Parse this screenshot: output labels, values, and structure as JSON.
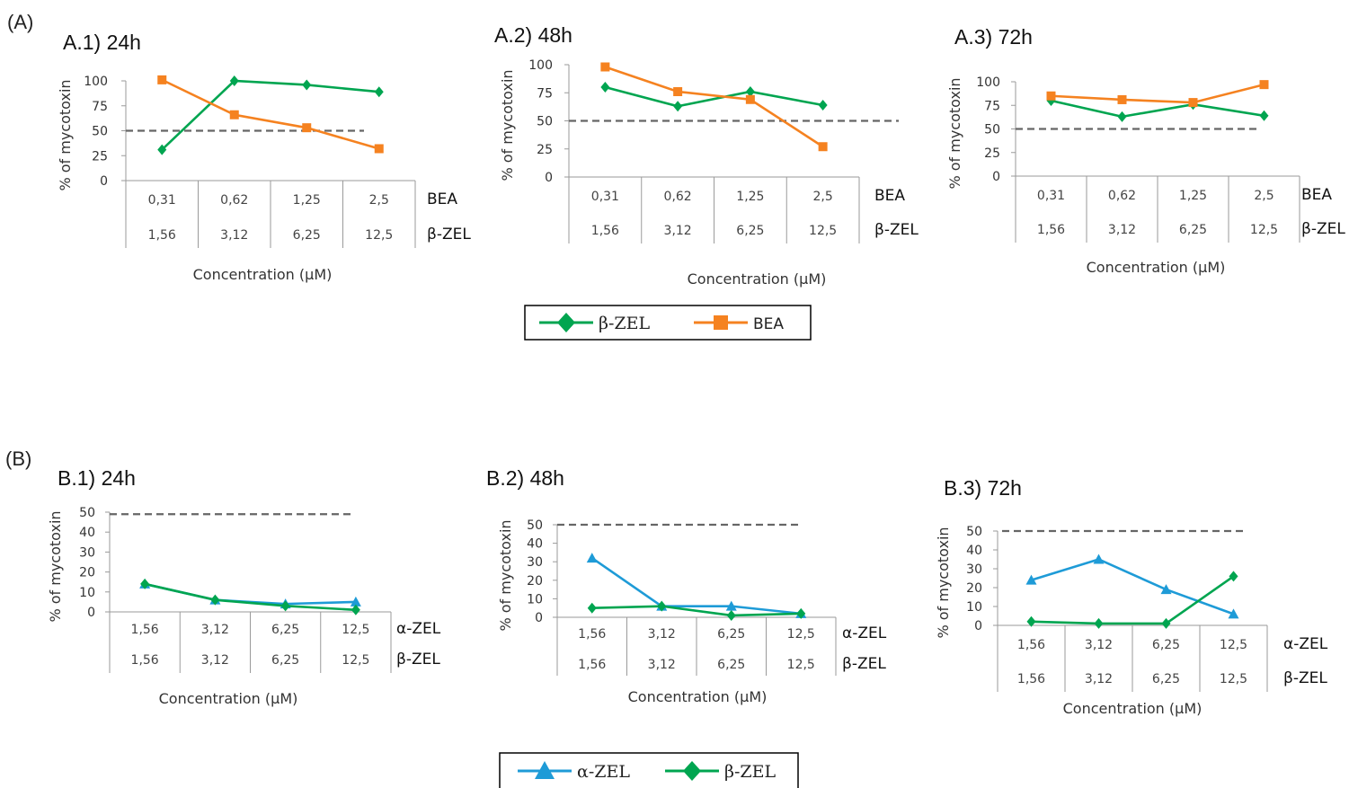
{
  "figure": {
    "section_a_label": "(A)",
    "section_b_label": "(B)"
  },
  "colors": {
    "beta_zel": "#00A550",
    "bea": "#F58220",
    "alpha_zel": "#1E9BD7",
    "reference": "#666666",
    "axis": "#9a9a9a"
  },
  "legend_a": [
    {
      "name": "β-ZEL",
      "color": "#00A550",
      "marker": "diamond"
    },
    {
      "name": "BEA",
      "color": "#F58220",
      "marker": "square"
    }
  ],
  "legend_b": [
    {
      "name": "α-ZEL",
      "color": "#1E9BD7",
      "marker": "triangle"
    },
    {
      "name": "β-ZEL",
      "color": "#00A550",
      "marker": "diamond"
    }
  ],
  "chart_data": [
    {
      "type": "line",
      "title": "A.1) 24h",
      "ylabel": "% of mycotoxin",
      "xlabel": "Concentration (μM)",
      "ylim": [
        0,
        100
      ],
      "yticks": [
        0,
        25,
        50,
        75,
        100
      ],
      "reference_line": 50,
      "category_rows": [
        {
          "name": "BEA",
          "labels": [
            "0,31",
            "0,62",
            "1,25",
            "2,5"
          ]
        },
        {
          "name": "β-ZEL",
          "labels": [
            "1,56",
            "3,12",
            "6,25",
            "12,5"
          ]
        }
      ],
      "series": [
        {
          "name": "β-ZEL",
          "marker": "diamond",
          "color": "#00A550",
          "values": [
            31,
            100,
            96,
            89
          ]
        },
        {
          "name": "BEA",
          "marker": "square",
          "color": "#F58220",
          "values": [
            101,
            66,
            53,
            32
          ]
        }
      ]
    },
    {
      "type": "line",
      "title": "A.2) 48h",
      "ylabel": "% of mycotoxin",
      "xlabel": "Concentration (μM)",
      "ylim": [
        0,
        100
      ],
      "yticks": [
        0,
        25,
        50,
        75,
        100
      ],
      "reference_line": 50,
      "category_rows": [
        {
          "name": "BEA",
          "labels": [
            "0,31",
            "0,62",
            "1,25",
            "2,5"
          ]
        },
        {
          "name": "β-ZEL",
          "labels": [
            "1,56",
            "3,12",
            "6,25",
            "12,5"
          ]
        }
      ],
      "series": [
        {
          "name": "β-ZEL",
          "marker": "diamond",
          "color": "#00A550",
          "values": [
            80,
            63,
            76,
            64
          ]
        },
        {
          "name": "BEA",
          "marker": "square",
          "color": "#F58220",
          "values": [
            98,
            76,
            69,
            27
          ]
        }
      ]
    },
    {
      "type": "line",
      "title": "A.3) 72h",
      "ylabel": "% of mycotoxin",
      "xlabel": "Concentration (μM)",
      "ylim": [
        0,
        100
      ],
      "yticks": [
        0,
        25,
        50,
        75,
        100
      ],
      "reference_line": 50,
      "category_rows": [
        {
          "name": "BEA",
          "labels": [
            "0,31",
            "0,62",
            "1,25",
            "2,5"
          ]
        },
        {
          "name": "β-ZEL",
          "labels": [
            "1,56",
            "3,12",
            "6,25",
            "12,5"
          ]
        }
      ],
      "series": [
        {
          "name": "β-ZEL",
          "marker": "diamond",
          "color": "#00A550",
          "values": [
            80,
            63,
            76,
            64
          ]
        },
        {
          "name": "BEA",
          "marker": "square",
          "color": "#F58220",
          "values": [
            85,
            81,
            78,
            97
          ]
        }
      ]
    },
    {
      "type": "line",
      "title": "B.1) 24h",
      "ylabel": "% of mycotoxin",
      "xlabel": "Concentration (μM)",
      "ylim": [
        0,
        50
      ],
      "yticks": [
        0,
        10,
        20,
        30,
        40,
        50
      ],
      "reference_line": 49,
      "category_rows": [
        {
          "name": "α-ZEL",
          "labels": [
            "1,56",
            "3,12",
            "6,25",
            "12,5"
          ]
        },
        {
          "name": "β-ZEL",
          "labels": [
            "1,56",
            "3,12",
            "6,25",
            "12,5"
          ]
        }
      ],
      "series": [
        {
          "name": "α-ZEL",
          "marker": "triangle",
          "color": "#1E9BD7",
          "values": [
            14,
            6,
            4,
            5
          ]
        },
        {
          "name": "β-ZEL",
          "marker": "diamond",
          "color": "#00A550",
          "values": [
            14,
            6,
            3,
            1
          ]
        }
      ]
    },
    {
      "type": "line",
      "title": "B.2) 48h",
      "ylabel": "% of mycotoxin",
      "xlabel": "Concentration (μM)",
      "ylim": [
        0,
        50
      ],
      "yticks": [
        0,
        10,
        20,
        30,
        40,
        50
      ],
      "reference_line": 50,
      "category_rows": [
        {
          "name": "α-ZEL",
          "labels": [
            "1,56",
            "3,12",
            "6,25",
            "12,5"
          ]
        },
        {
          "name": "β-ZEL",
          "labels": [
            "1,56",
            "3,12",
            "6,25",
            "12,5"
          ]
        }
      ],
      "series": [
        {
          "name": "α-ZEL",
          "marker": "triangle",
          "color": "#1E9BD7",
          "values": [
            32,
            6,
            6,
            2
          ]
        },
        {
          "name": "β-ZEL",
          "marker": "diamond",
          "color": "#00A550",
          "values": [
            5,
            6,
            1,
            2
          ]
        }
      ]
    },
    {
      "type": "line",
      "title": "B.3) 72h",
      "ylabel": "% of mycotoxin",
      "xlabel": "Concentration (μM)",
      "ylim": [
        0,
        50
      ],
      "yticks": [
        0,
        10,
        20,
        30,
        40,
        50
      ],
      "reference_line": 50,
      "category_rows": [
        {
          "name": "α-ZEL",
          "labels": [
            "1,56",
            "3,12",
            "6,25",
            "12,5"
          ]
        },
        {
          "name": "β-ZEL",
          "labels": [
            "1,56",
            "3,12",
            "6,25",
            "12,5"
          ]
        }
      ],
      "series": [
        {
          "name": "α-ZEL",
          "marker": "triangle",
          "color": "#1E9BD7",
          "values": [
            24,
            35,
            19,
            6
          ]
        },
        {
          "name": "β-ZEL",
          "marker": "diamond",
          "color": "#00A550",
          "values": [
            2,
            1,
            1,
            26
          ]
        }
      ]
    }
  ]
}
